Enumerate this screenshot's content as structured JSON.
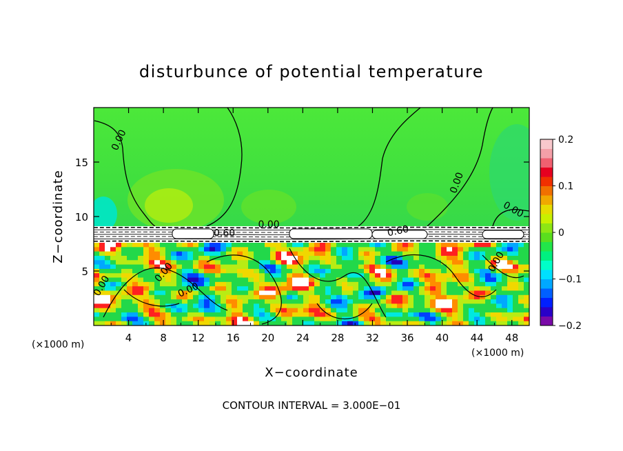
{
  "chart_data": {
    "type": "heatmap",
    "title": "disturbunce of potential temperature",
    "xlabel": "X−coordinate",
    "ylabel": "Z−coordinate",
    "x_unit": "(×1000 m)",
    "xlim": [
      0,
      50
    ],
    "ylim": [
      0,
      20
    ],
    "x_ticks": [
      4,
      8,
      12,
      16,
      20,
      24,
      28,
      32,
      36,
      40,
      44,
      48
    ],
    "x_tick_labels": [
      "4",
      "8",
      "12",
      "16",
      "20",
      "24",
      "28",
      "32",
      "36",
      "40",
      "44",
      "48"
    ],
    "y_ticks": [
      5,
      10,
      15
    ],
    "y_tick_labels": [
      "5",
      "10",
      "15"
    ],
    "footer": "CONTOUR INTERVAL = 3.000E−01",
    "colorbar": {
      "range": [
        -0.2,
        0.2
      ],
      "tick_values": [
        0.2,
        0.1,
        0,
        -0.1,
        -0.2
      ],
      "tick_labels": [
        "0.2",
        "0.1",
        "0",
        "−0.1",
        "−0.2"
      ],
      "colors": [
        "#7a0aa8",
        "#2a00c8",
        "#0020ff",
        "#0060ff",
        "#00a8ff",
        "#00e0ff",
        "#00ffc8",
        "#00f080",
        "#22e64a",
        "#5ade1e",
        "#8ee614",
        "#c8f000",
        "#e6dc00",
        "#f0a800",
        "#f07000",
        "#f03000",
        "#e60020",
        "#f06070",
        "#f4a0a8",
        "#f8c8cc"
      ]
    },
    "contour_labels": [
      {
        "text": "0.00",
        "x": 3.2,
        "z": 16.9,
        "rot": -65
      },
      {
        "text": "0.00",
        "x": 20.1,
        "z": 9.0,
        "rot": 0
      },
      {
        "text": "0.60",
        "x": 15.0,
        "z": 8.2,
        "rot": 0
      },
      {
        "text": "0.60",
        "x": 35.0,
        "z": 8.4,
        "rot": -12
      },
      {
        "text": "0.00",
        "x": 42.0,
        "z": 13.0,
        "rot": -70
      },
      {
        "text": "0.00",
        "x": 48.0,
        "z": 10.4,
        "rot": 30
      },
      {
        "text": "0.00",
        "x": 8.3,
        "z": 4.7,
        "rot": -50
      },
      {
        "text": "0.00",
        "x": 11.0,
        "z": 3.0,
        "rot": -25
      },
      {
        "text": "0.00",
        "x": 1.2,
        "z": 3.5,
        "rot": -60
      },
      {
        "text": "0.00",
        "x": 46.5,
        "z": 5.7,
        "rot": -60
      }
    ]
  }
}
